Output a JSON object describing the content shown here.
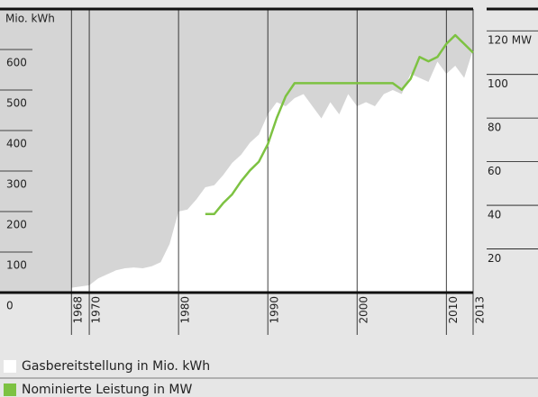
{
  "chart_data": {
    "type": "area-line",
    "y_label": "Mio. kWh",
    "xlim": [
      1960,
      2013
    ],
    "xticks": [
      1968,
      1970,
      1980,
      1990,
      2000,
      2010,
      2013
    ],
    "ylim": [
      0,
      700
    ],
    "yticks": [
      0,
      100,
      200,
      300,
      400,
      500,
      600
    ],
    "y2lim": [
      0,
      130
    ],
    "y2ticks": [
      20,
      40,
      60,
      80,
      100,
      {
        "value": 120,
        "label": "120 MW"
      }
    ],
    "grid": true,
    "series": [
      {
        "name": "Gasbereitstellung in Mio. kWh",
        "color": "#ffffff",
        "kind": "area",
        "x": [
          1968,
          1969,
          1970,
          1971,
          1972,
          1973,
          1974,
          1975,
          1976,
          1977,
          1978,
          1979,
          1980,
          1981,
          1982,
          1983,
          1984,
          1985,
          1986,
          1987,
          1988,
          1989,
          1990,
          1991,
          1992,
          1993,
          1994,
          1995,
          1996,
          1997,
          1998,
          1999,
          2000,
          2001,
          2002,
          2003,
          2004,
          2005,
          2006,
          2007,
          2008,
          2009,
          2010,
          2011,
          2012,
          2013
        ],
        "values": [
          12,
          15,
          18,
          35,
          45,
          55,
          60,
          62,
          60,
          65,
          75,
          120,
          200,
          205,
          230,
          260,
          265,
          290,
          320,
          340,
          370,
          390,
          440,
          470,
          460,
          480,
          490,
          460,
          430,
          470,
          440,
          490,
          460,
          470,
          460,
          490,
          500,
          490,
          540,
          530,
          520,
          570,
          540,
          560,
          530,
          600
        ]
      },
      {
        "name": "Nominierte Leistung in MW",
        "color": "#7dc242",
        "kind": "line",
        "axis": "y2",
        "x": [
          1983,
          1984,
          1985,
          1986,
          1987,
          1988,
          1989,
          1990,
          1991,
          1992,
          1993,
          2004,
          2005,
          2006,
          2007,
          2008,
          2009,
          2010,
          2011,
          2012,
          2013
        ],
        "values": [
          36,
          36,
          41,
          45,
          51,
          56,
          60,
          68,
          80,
          90,
          96,
          96,
          93,
          98,
          108,
          106,
          108,
          114,
          118,
          114,
          110
        ]
      }
    ]
  }
}
